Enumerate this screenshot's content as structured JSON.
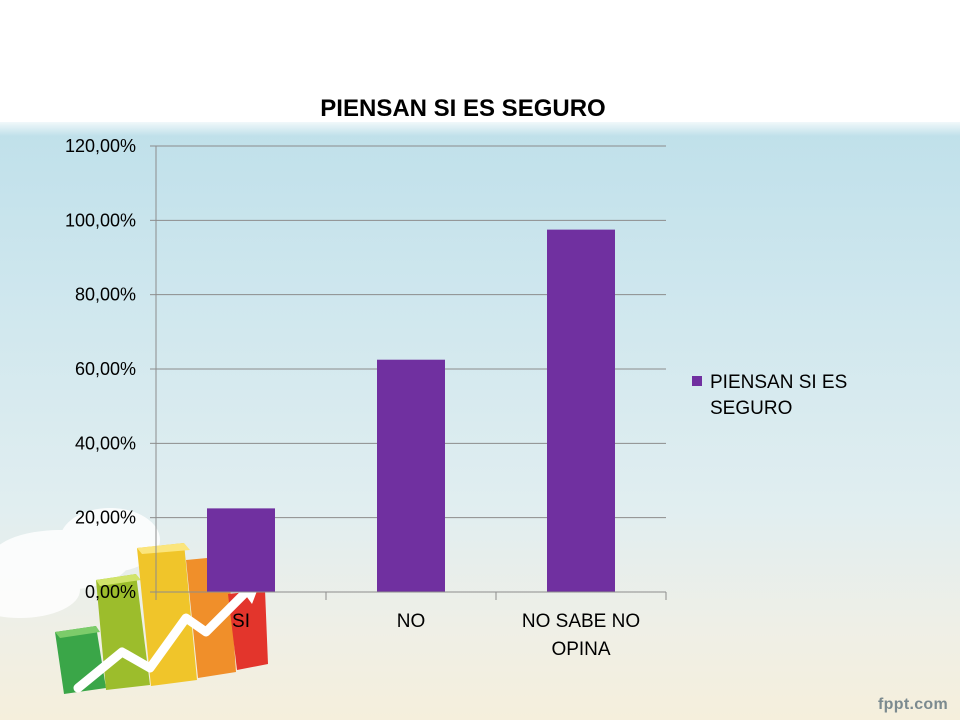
{
  "chart_data": {
    "type": "bar",
    "title": "PIENSAN SI ES SEGURO",
    "categories": [
      "SI",
      "NO",
      "NO SABE NO OPINA"
    ],
    "category_lines": [
      [
        "SI"
      ],
      [
        "NO"
      ],
      [
        "NO SABE NO",
        "OPINA"
      ]
    ],
    "series": [
      {
        "name": "PIENSAN SI ES SEGURO",
        "values": [
          0.225,
          0.625,
          0.975
        ]
      }
    ],
    "ylim": [
      0,
      1.2
    ],
    "yticks": [
      0,
      0.2,
      0.4,
      0.6,
      0.8,
      1.0,
      1.2
    ],
    "ytick_labels": [
      "0,00%",
      "20,00%",
      "40,00%",
      "60,00%",
      "80,00%",
      "100,00%",
      "120,00%"
    ],
    "grid": true,
    "legend_position": "right",
    "legend_lines": [
      "PIENSAN SI ES",
      "SEGURO"
    ],
    "bar_color": "#7030a0"
  },
  "decor": {
    "icon": "growth-bar-chart-icon",
    "brand": "fppt.com"
  }
}
